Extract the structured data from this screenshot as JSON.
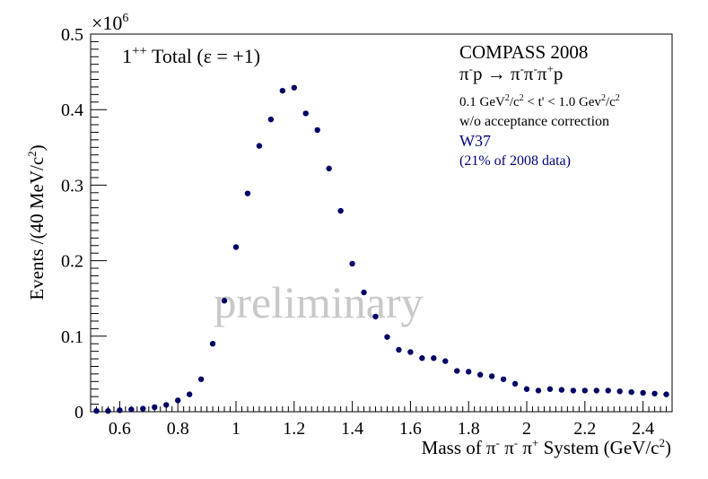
{
  "chart_data": {
    "type": "scatter",
    "title": "1++ Total (ε = +1)",
    "xlabel": "Mass of π- π- π+ System (GeV/c2)",
    "ylabel": "Events /(40 MeV/c2)",
    "xlim": [
      0.5,
      2.5
    ],
    "ylim": [
      0,
      0.5
    ],
    "y_multiplier_label": "×10",
    "y_multiplier_exp": "6",
    "xticks": [
      0.6,
      0.8,
      1,
      1.2,
      1.4,
      1.6,
      1.8,
      2,
      2.2,
      2.4
    ],
    "xtick_labels": [
      "0.6",
      "0.8",
      "1",
      "1.2",
      "1.4",
      "1.6",
      "1.8",
      "2",
      "2.2",
      "2.4"
    ],
    "yticks": [
      0,
      0.1,
      0.2,
      0.3,
      0.4,
      0.5
    ],
    "ytick_labels": [
      "0",
      "0.1",
      "0.2",
      "0.3",
      "0.4",
      "0.5"
    ],
    "grid": false,
    "marker_color": "#000066",
    "series": [
      {
        "name": "1++ Total (ε = +1)",
        "x": [
          0.52,
          0.56,
          0.6,
          0.64,
          0.68,
          0.72,
          0.76,
          0.8,
          0.84,
          0.88,
          0.92,
          0.96,
          1.0,
          1.04,
          1.08,
          1.12,
          1.16,
          1.2,
          1.24,
          1.28,
          1.32,
          1.36,
          1.4,
          1.44,
          1.48,
          1.52,
          1.56,
          1.6,
          1.64,
          1.68,
          1.72,
          1.76,
          1.8,
          1.84,
          1.88,
          1.92,
          1.96,
          2.0,
          2.04,
          2.08,
          2.12,
          2.16,
          2.2,
          2.24,
          2.28,
          2.32,
          2.36,
          2.4,
          2.44,
          2.48
        ],
        "y": [
          0.001,
          0.001,
          0.002,
          0.003,
          0.004,
          0.006,
          0.009,
          0.015,
          0.023,
          0.043,
          0.09,
          0.147,
          0.218,
          0.289,
          0.352,
          0.387,
          0.425,
          0.429,
          0.395,
          0.373,
          0.322,
          0.266,
          0.196,
          0.158,
          0.126,
          0.099,
          0.082,
          0.079,
          0.071,
          0.071,
          0.067,
          0.054,
          0.053,
          0.049,
          0.047,
          0.043,
          0.037,
          0.03,
          0.028,
          0.03,
          0.029,
          0.028,
          0.028,
          0.028,
          0.028,
          0.027,
          0.026,
          0.025,
          0.024,
          0.023
        ]
      }
    ]
  },
  "legend": {
    "title_main": "1",
    "title_sup": "++",
    "title_rest": " Total (ε = +1)"
  },
  "info": {
    "experiment": "COMPASS 2008",
    "reaction": {
      "p1": "π",
      "p1_sup": "-",
      "p2": "p → π",
      "p2_sup": "-",
      "p3": "π",
      "p3_sup": "-",
      "p4": "π",
      "p4_sup": "+",
      "p5": "p"
    },
    "tcut": {
      "a": "0.1 GeV",
      "a_sup": "2",
      "b": "/c",
      "b_sup": "2",
      "c": " < t' < 1.0 Gev",
      "c_sup": "2",
      "d": "/c",
      "d_sup": "2"
    },
    "acceptance": "w/o acceptance correction",
    "wave_set": "W37",
    "data_fraction": "(21% of 2008 data)",
    "highlight_color": "#000080"
  },
  "watermark": "preliminary",
  "axis_labels": {
    "y": {
      "a": "Events /(40 MeV/c",
      "sup": "2",
      "b": ")"
    },
    "x": {
      "a": "Mass of  π",
      "s1": "-",
      "b": " π",
      "s2": "-",
      "c": " π",
      "s3": "+",
      "d": " System (GeV/c",
      "s4": "2",
      "e": ")"
    }
  }
}
